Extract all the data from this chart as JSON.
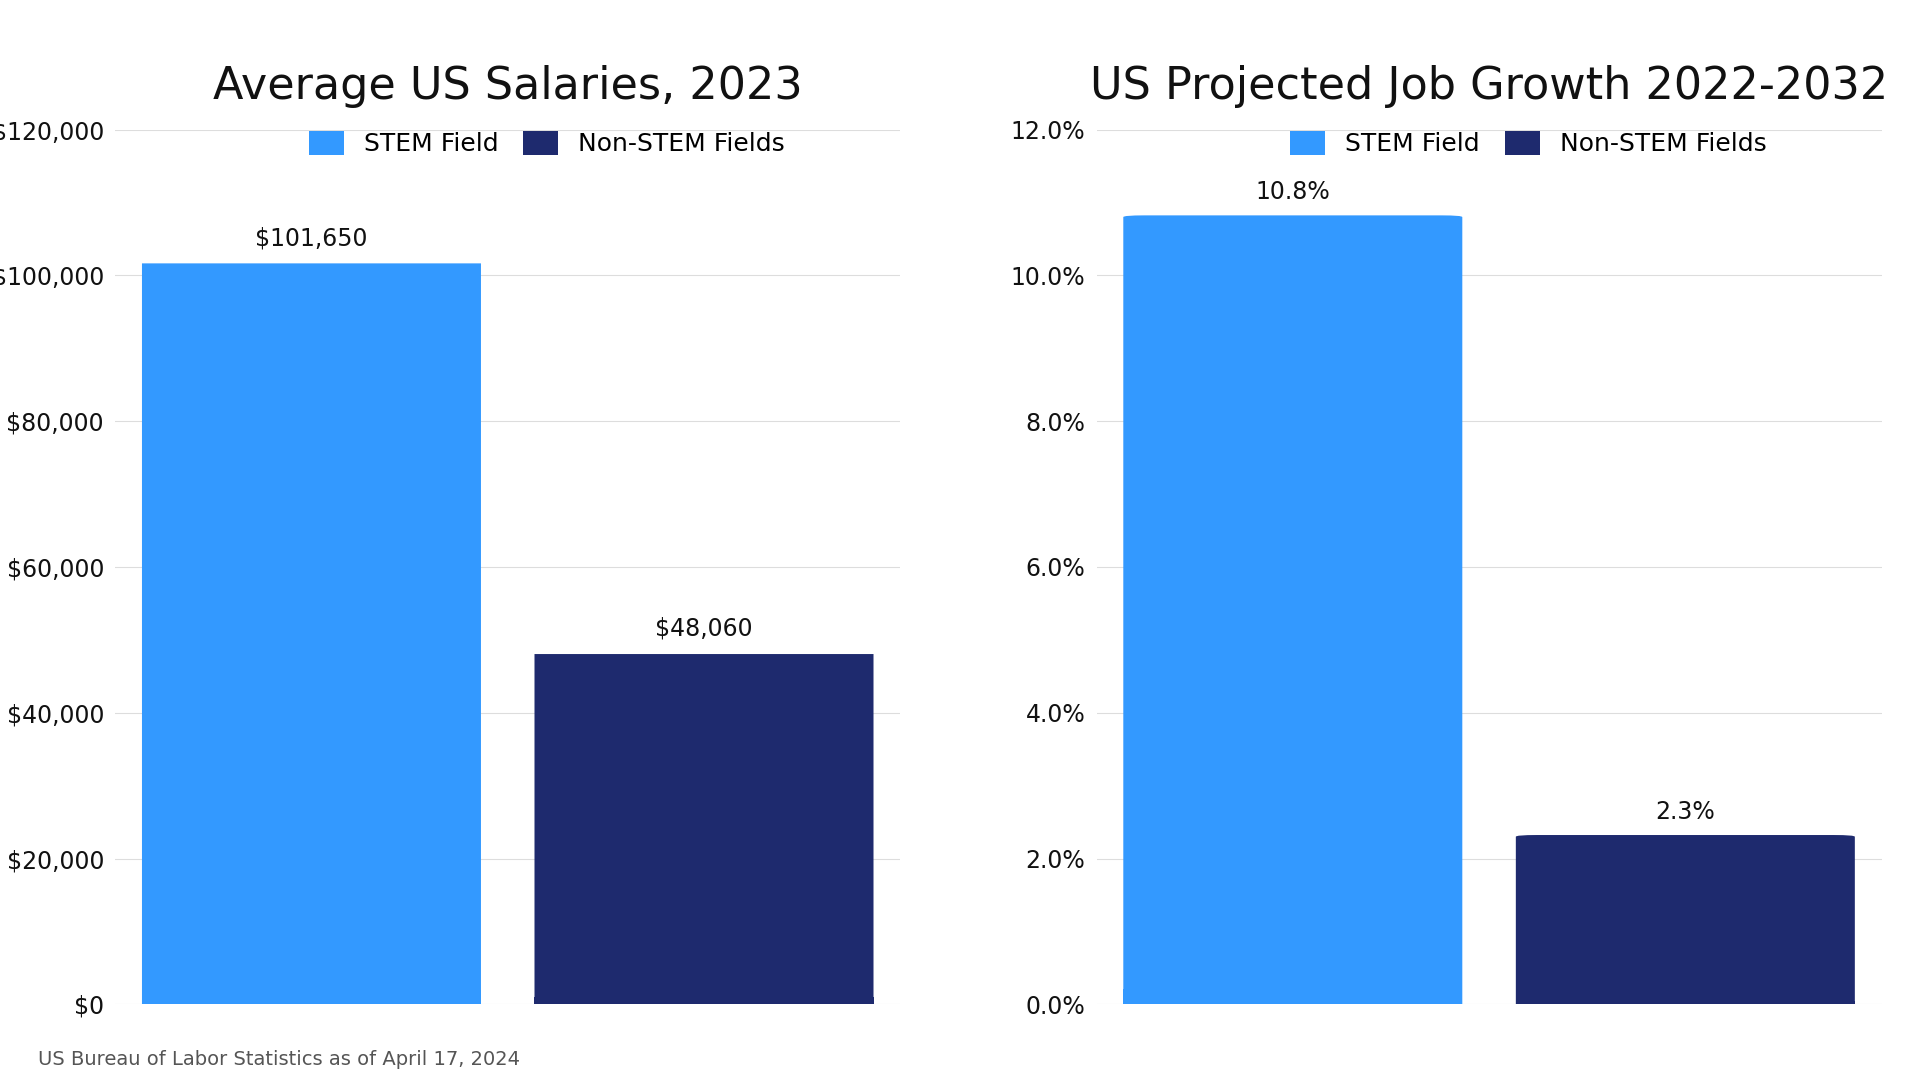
{
  "chart1_title": "Average US Salaries, 2023",
  "chart2_title": "US Projected Job Growth 2022-2032",
  "categories": [
    "STEM Field",
    "Non-STEM Fields"
  ],
  "salary_values": [
    101650,
    48060
  ],
  "growth_values": [
    10.8,
    2.3
  ],
  "stem_color": "#3399FF",
  "non_stem_color": "#1E2A6E",
  "background_color": "#FFFFFF",
  "title_fontsize": 32,
  "legend_fontsize": 18,
  "tick_fontsize": 17,
  "bar_label_fontsize": 17,
  "salary_ylim": [
    0,
    120000
  ],
  "salary_yticks": [
    0,
    20000,
    40000,
    60000,
    80000,
    100000,
    120000
  ],
  "growth_ylim": [
    0,
    12.0
  ],
  "growth_yticks": [
    0.0,
    2.0,
    4.0,
    6.0,
    8.0,
    10.0,
    12.0
  ],
  "footnote": "US Bureau of Labor Statistics as of April 17, 2024",
  "footnote_fontsize": 14,
  "legend_labels": [
    "STEM Field",
    "Non-STEM Fields"
  ],
  "grid_color": "#DDDDDD"
}
